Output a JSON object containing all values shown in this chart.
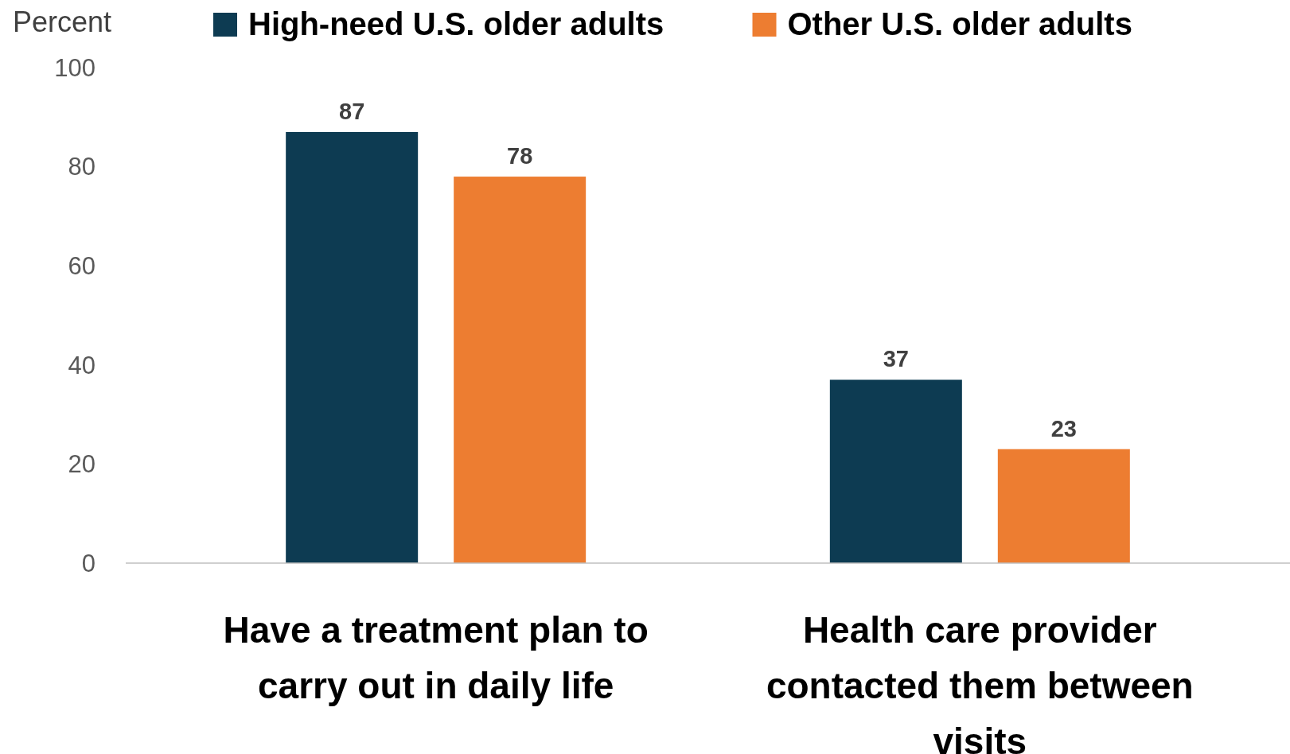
{
  "chart_data": {
    "type": "bar",
    "ylabel": "Percent",
    "categories": [
      "Have a treatment plan to carry out in daily life",
      "Health care provider contacted them between visits"
    ],
    "series": [
      {
        "name": "High-need U.S. older adults",
        "color": "#0d3b52",
        "values": [
          87,
          37
        ]
      },
      {
        "name": "Other U.S. older adults",
        "color": "#ed7d31",
        "values": [
          78,
          23
        ]
      }
    ],
    "ylim": [
      0,
      100
    ],
    "yticks": [
      0,
      20,
      40,
      60,
      80,
      100
    ],
    "grid": false,
    "legend": "top",
    "data_labels": true
  }
}
